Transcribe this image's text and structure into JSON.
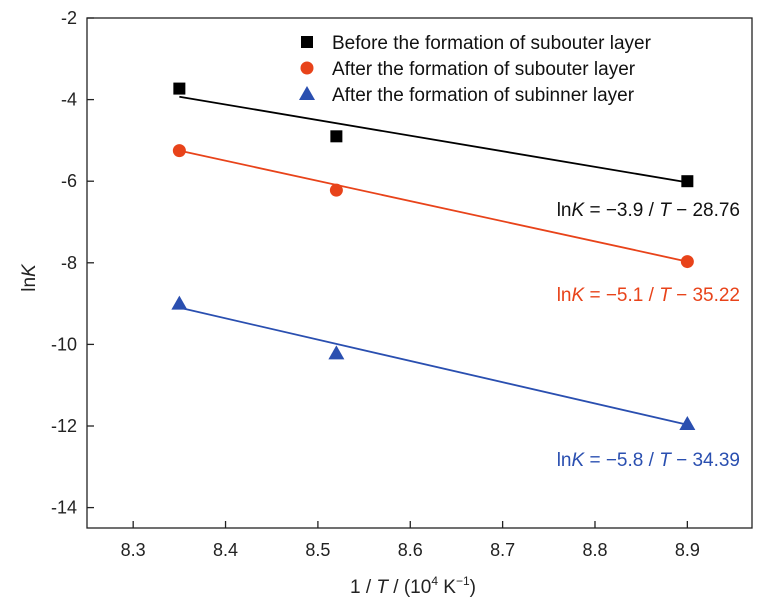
{
  "chart_data": {
    "type": "scatter",
    "xlabel": "1 / T / (10^4 K^-1)",
    "ylabel": "lnK",
    "xlim": [
      8.25,
      8.97
    ],
    "ylim": [
      -14.5,
      -2
    ],
    "xticks": [
      "8.3",
      "8.4",
      "8.5",
      "8.6",
      "8.7",
      "8.8",
      "8.9"
    ],
    "yticks": [
      "-2",
      "-4",
      "-6",
      "-8",
      "-10",
      "-12",
      "-14"
    ],
    "grid": false,
    "legend_position": "top-right",
    "series": [
      {
        "name": "Before the formation of subouter layer",
        "marker": "square",
        "color": "#000000",
        "x": [
          8.35,
          8.52,
          8.9
        ],
        "y": [
          -3.73,
          -4.9,
          -6.0
        ],
        "fit": {
          "x": [
            8.35,
            8.9
          ],
          "y": [
            -3.93,
            -6.03
          ]
        },
        "equation": {
          "prefix": "ln",
          "var": "K",
          "middle": " = −3.9 / ",
          "var2": "T",
          "suffix": " − 28.76"
        }
      },
      {
        "name": "After the formation of subouter layer",
        "marker": "circle",
        "color": "#e8431a",
        "x": [
          8.35,
          8.52,
          8.9
        ],
        "y": [
          -5.25,
          -6.22,
          -7.97
        ],
        "fit": {
          "x": [
            8.35,
            8.9
          ],
          "y": [
            -5.25,
            -7.97
          ]
        },
        "equation": {
          "prefix": "ln",
          "var": "K",
          "middle": " = −5.1 / ",
          "var2": "T",
          "suffix": " − 35.22"
        }
      },
      {
        "name": "After the formation of subinner layer",
        "marker": "triangle",
        "color": "#2a4fb0",
        "x": [
          8.35,
          8.52,
          8.9
        ],
        "y": [
          -9.0,
          -10.22,
          -11.95
        ],
        "fit": {
          "x": [
            8.35,
            8.9
          ],
          "y": [
            -9.1,
            -11.97
          ]
        },
        "equation": {
          "prefix": "ln",
          "var": "K",
          "middle": " = −5.8 / ",
          "var2": "T",
          "suffix": " − 34.39"
        }
      }
    ]
  }
}
